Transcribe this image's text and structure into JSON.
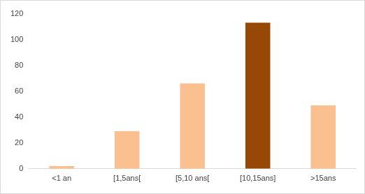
{
  "chart_data": {
    "type": "bar",
    "categories": [
      "<1 an",
      "[1,5ans[",
      "[5,10 ans[",
      "[10,15ans]",
      ">15ans"
    ],
    "values": [
      2,
      29,
      66,
      113,
      49
    ],
    "colors": [
      "#fac090",
      "#fac090",
      "#fac090",
      "#974706",
      "#fac090"
    ],
    "ylim": [
      0,
      120
    ],
    "yticks": [
      0,
      20,
      40,
      60,
      80,
      100,
      120
    ],
    "grid": false
  }
}
